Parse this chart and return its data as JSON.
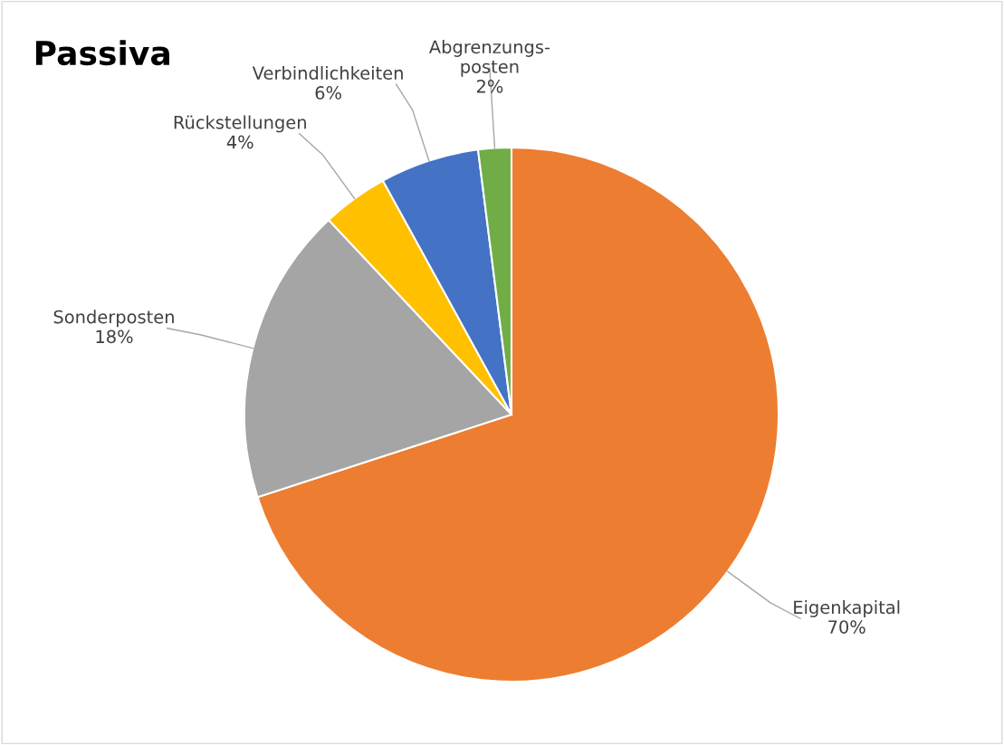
{
  "chart_data": {
    "type": "pie",
    "title": "Passiva",
    "categories": [
      "Eigenkapital",
      "Sonderposten",
      "Rückstellungen",
      "Verbindlichkeiten",
      "Abgrenzungs-\nposten"
    ],
    "values": [
      70,
      18,
      4,
      6,
      2
    ],
    "value_labels": [
      "70%",
      "18%",
      "4%",
      "6%",
      "2%"
    ],
    "colors": [
      "#ed7d31",
      "#a5a5a5",
      "#ffc000",
      "#4472c4",
      "#70ad47"
    ],
    "legend": false
  }
}
